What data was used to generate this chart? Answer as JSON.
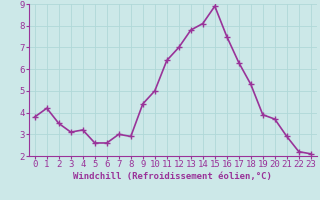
{
  "x": [
    0,
    1,
    2,
    3,
    4,
    5,
    6,
    7,
    8,
    9,
    10,
    11,
    12,
    13,
    14,
    15,
    16,
    17,
    18,
    19,
    20,
    21,
    22,
    23
  ],
  "y": [
    3.8,
    4.2,
    3.5,
    3.1,
    3.2,
    2.6,
    2.6,
    3.0,
    2.9,
    4.4,
    5.0,
    6.4,
    7.0,
    7.8,
    8.1,
    8.9,
    7.5,
    6.3,
    5.3,
    3.9,
    3.7,
    2.9,
    2.2,
    2.1
  ],
  "line_color": "#993399",
  "marker": "+",
  "marker_size": 4,
  "bg_color": "#cce8e8",
  "grid_color": "#b0d8d8",
  "xlabel": "Windchill (Refroidissement éolien,°C)",
  "xlabel_color": "#993399",
  "tick_color": "#993399",
  "ylim": [
    2,
    9
  ],
  "xlim": [
    -0.5,
    23.5
  ],
  "yticks": [
    2,
    3,
    4,
    5,
    6,
    7,
    8,
    9
  ],
  "xticks": [
    0,
    1,
    2,
    3,
    4,
    5,
    6,
    7,
    8,
    9,
    10,
    11,
    12,
    13,
    14,
    15,
    16,
    17,
    18,
    19,
    20,
    21,
    22,
    23
  ],
  "linewidth": 1.2,
  "font_size_label": 6.5,
  "font_size_tick": 6.5,
  "spine_color": "#993399"
}
